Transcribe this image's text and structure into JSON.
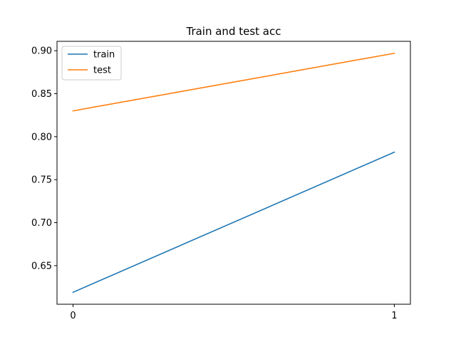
{
  "chart_data": {
    "type": "line",
    "title": "Train and test acc",
    "xlabel": "",
    "ylabel": "",
    "x": [
      0,
      1
    ],
    "xticks": [
      0,
      1
    ],
    "yticks": [
      0.65,
      0.7,
      0.75,
      0.8,
      0.85,
      0.9
    ],
    "ytick_labels": [
      "0.65",
      "0.70",
      "0.75",
      "0.80",
      "0.85",
      "0.90"
    ],
    "xlim": [
      -0.05,
      1.05
    ],
    "ylim": [
      0.6051,
      0.9109
    ],
    "grid": false,
    "legend_position": "top-left",
    "series": [
      {
        "name": "train",
        "color": "#1f77b4",
        "values": [
          0.619,
          0.782
        ]
      },
      {
        "name": "test",
        "color": "#ff7f0e",
        "values": [
          0.83,
          0.897
        ]
      }
    ]
  }
}
